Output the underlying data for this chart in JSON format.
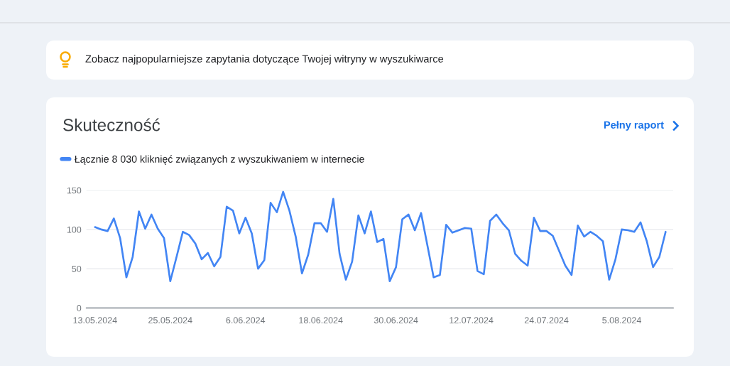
{
  "chart_data": {
    "type": "line",
    "title": "Skuteczność",
    "annotations": [
      "Zobacz najpopularniejsze zapytania dotyczące Twojej witryny w wyszukiwarce",
      "Pełny raport"
    ],
    "x": [
      "2024-05-13",
      "2024-05-14",
      "2024-05-15",
      "2024-05-16",
      "2024-05-17",
      "2024-05-18",
      "2024-05-19",
      "2024-05-20",
      "2024-05-21",
      "2024-05-22",
      "2024-05-23",
      "2024-05-24",
      "2024-05-25",
      "2024-05-26",
      "2024-05-27",
      "2024-05-28",
      "2024-05-29",
      "2024-05-30",
      "2024-05-31",
      "2024-06-01",
      "2024-06-02",
      "2024-06-03",
      "2024-06-04",
      "2024-06-05",
      "2024-06-06",
      "2024-06-07",
      "2024-06-08",
      "2024-06-09",
      "2024-06-10",
      "2024-06-11",
      "2024-06-12",
      "2024-06-13",
      "2024-06-14",
      "2024-06-15",
      "2024-06-16",
      "2024-06-17",
      "2024-06-18",
      "2024-06-19",
      "2024-06-20",
      "2024-06-21",
      "2024-06-22",
      "2024-06-23",
      "2024-06-24",
      "2024-06-25",
      "2024-06-26",
      "2024-06-27",
      "2024-06-28",
      "2024-06-29",
      "2024-06-30",
      "2024-07-01",
      "2024-07-02",
      "2024-07-03",
      "2024-07-04",
      "2024-07-05",
      "2024-07-06",
      "2024-07-07",
      "2024-07-08",
      "2024-07-09",
      "2024-07-10",
      "2024-07-11",
      "2024-07-12",
      "2024-07-13",
      "2024-07-14",
      "2024-07-15",
      "2024-07-16",
      "2024-07-17",
      "2024-07-18",
      "2024-07-19",
      "2024-07-20",
      "2024-07-21",
      "2024-07-22",
      "2024-07-23",
      "2024-07-24",
      "2024-07-25",
      "2024-07-26",
      "2024-07-27",
      "2024-07-28",
      "2024-07-29",
      "2024-07-30",
      "2024-07-31",
      "2024-08-01",
      "2024-08-02",
      "2024-08-03",
      "2024-08-04",
      "2024-08-05",
      "2024-08-06",
      "2024-08-07",
      "2024-08-08",
      "2024-08-09",
      "2024-08-10",
      "2024-08-11",
      "2024-08-12"
    ],
    "series": [
      {
        "name": "Łącznie 8 030 kliknięć związanych z wyszukiwaniem w internecie",
        "color": "#4285f4",
        "values": [
          103,
          100,
          98,
          114,
          89,
          39,
          65,
          123,
          101,
          119,
          101,
          89,
          34,
          65,
          97,
          93,
          82,
          62,
          70,
          53,
          65,
          129,
          124,
          95,
          115,
          95,
          50,
          61,
          134,
          122,
          148,
          124,
          91,
          44,
          68,
          108,
          108,
          97,
          139,
          69,
          36,
          59,
          118,
          95,
          123,
          84,
          88,
          34,
          52,
          113,
          119,
          99,
          121,
          80,
          39,
          42,
          106,
          96,
          99,
          102,
          101,
          47,
          43,
          111,
          119,
          108,
          99,
          69,
          60,
          54,
          115,
          98,
          98,
          92,
          73,
          54,
          42,
          105,
          91,
          97,
          92,
          85,
          36,
          62,
          100,
          99,
          97,
          109,
          85,
          52,
          65,
          97
        ]
      }
    ],
    "xlim": [
      "2024-05-11T15:00",
      "2024-08-13T05:00"
    ],
    "xticks": [
      {
        "value": "2024-05-13",
        "label": "13.05.2024"
      },
      {
        "value": "2024-05-25",
        "label": "25.05.2024"
      },
      {
        "value": "2024-06-06",
        "label": "6.06.2024"
      },
      {
        "value": "2024-06-18",
        "label": "18.06.2024"
      },
      {
        "value": "2024-06-30",
        "label": "30.06.2024"
      },
      {
        "value": "2024-07-12",
        "label": "12.07.2024"
      },
      {
        "value": "2024-07-24",
        "label": "24.07.2024"
      },
      {
        "value": "2024-08-05",
        "label": "5.08.2024"
      }
    ],
    "ylim": [
      0,
      150
    ],
    "yticks": [
      0,
      50,
      100,
      150
    ],
    "grid": "y",
    "legend": "top left"
  }
}
